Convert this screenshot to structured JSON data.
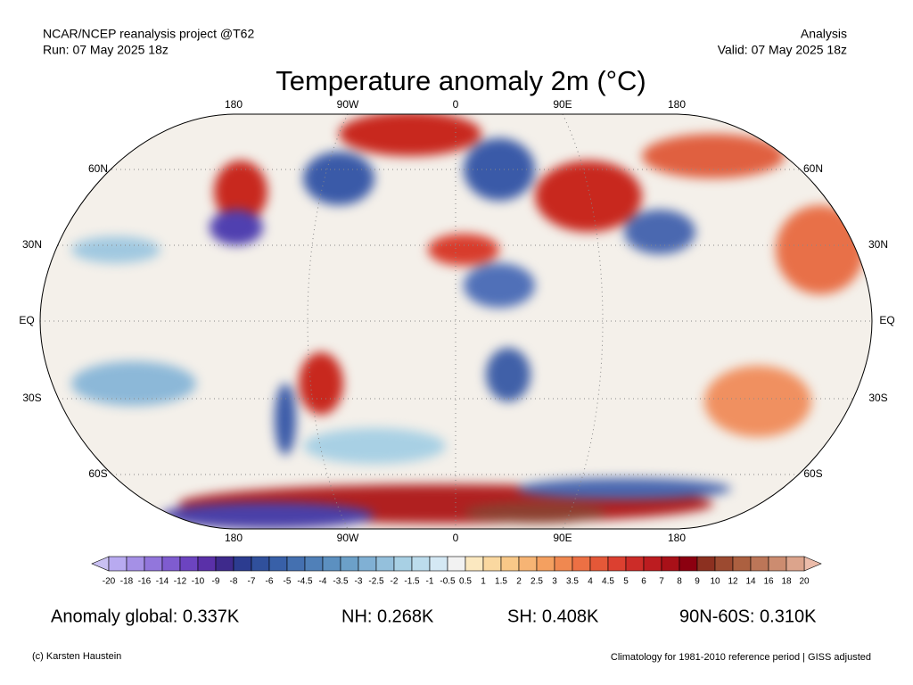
{
  "header": {
    "left": [
      "NCAR/NCEP reanalysis project @T62",
      "Run: 07 May 2025 18z"
    ],
    "right": [
      "Analysis",
      "Valid: 07 May 2025 18z"
    ],
    "title": "Temperature anomaly 2m (°C)"
  },
  "map": {
    "lon_labels": [
      "180",
      "90W",
      "0",
      "90E",
      "180"
    ],
    "lat_labels": [
      "60N",
      "30N",
      "EQ",
      "30S",
      "60S"
    ]
  },
  "colorbar": {
    "labels": [
      "-20",
      "-18",
      "-16",
      "-14",
      "-12",
      "-10",
      "-9",
      "-8",
      "-7",
      "-6",
      "-5",
      "-4.5",
      "-4",
      "-3.5",
      "-3",
      "-2.5",
      "-2",
      "-1.5",
      "-1",
      "-0.5",
      "0.5",
      "1",
      "1.5",
      "2",
      "2.5",
      "3",
      "3.5",
      "4",
      "4.5",
      "5",
      "6",
      "7",
      "8",
      "9",
      "10",
      "12",
      "14",
      "16",
      "18",
      "20"
    ],
    "colors": [
      "#c9c0f2",
      "#b8aaf0",
      "#a590e6",
      "#9276dc",
      "#7f5cd0",
      "#6c44c0",
      "#5a30a8",
      "#3e2a8c",
      "#2c3c90",
      "#30509c",
      "#3860a8",
      "#4470b0",
      "#5080b8",
      "#5c90c0",
      "#6ca0c8",
      "#80b0d4",
      "#94c0dc",
      "#a8d0e4",
      "#bcdcec",
      "#d4e8f4",
      "#f2f2f2",
      "#fbe8c0",
      "#fad8a0",
      "#f8c888",
      "#f6b474",
      "#f4a060",
      "#f08850",
      "#ec7044",
      "#e45838",
      "#dc4030",
      "#cc2c28",
      "#bc1c20",
      "#a81018",
      "#8c0010",
      "#8c3020",
      "#9c4a30",
      "#ac6040",
      "#bc7658",
      "#cc8c70",
      "#dca48c",
      "#ecbcaa"
    ]
  },
  "stats": [
    "Anomaly global: 0.337K",
    "NH: 0.268K",
    "SH: 0.408K",
    "90N-60S: 0.310K"
  ],
  "footer": {
    "left": "(c) Karsten Haustein",
    "right": "Climatology for 1981-2010 reference period | GISS adjusted"
  }
}
